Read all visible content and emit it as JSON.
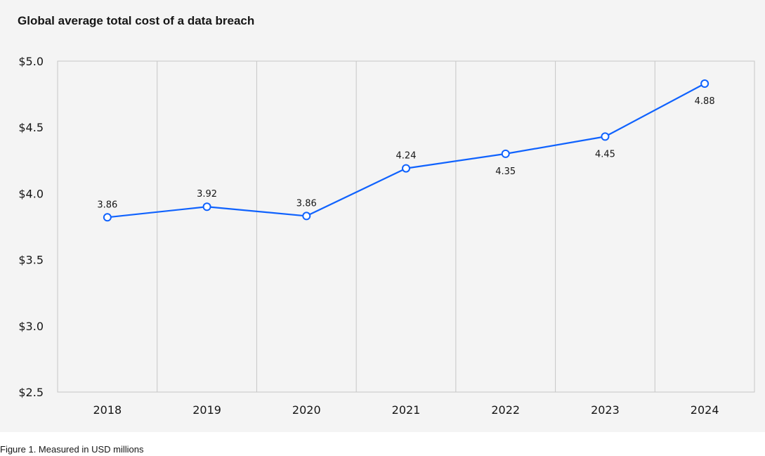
{
  "caption": "Figure 1. Measured in USD millions",
  "colors": {
    "panel_background": "#f4f4f4",
    "plot_background": "#f4f4f4",
    "grid": "#c6c6c6",
    "series": "#0f62fe"
  },
  "chart_data": {
    "type": "line",
    "title": "Global average total cost of a data breach",
    "xlabel": "",
    "ylabel": "",
    "categories": [
      "2018",
      "2019",
      "2020",
      "2021",
      "2022",
      "2023",
      "2024"
    ],
    "ylim": [
      2.5,
      5.0
    ],
    "yticks": [
      2.5,
      3.0,
      3.5,
      4.0,
      4.5,
      5.0
    ],
    "ytick_labels": [
      "$2.5",
      "$3.0",
      "$3.5",
      "$4.0",
      "$4.5",
      "$5.0"
    ],
    "grid": "vertical",
    "legend": "none",
    "series": [
      {
        "values": [
          3.86,
          3.92,
          3.86,
          4.24,
          4.35,
          4.45,
          4.88
        ],
        "plotted": [
          3.82,
          3.9,
          3.83,
          4.19,
          4.3,
          4.43,
          4.83
        ],
        "data_labels": [
          "3.86",
          "3.92",
          "3.86",
          "4.24",
          "4.35",
          "4.45",
          "4.88"
        ],
        "label_side": [
          "above",
          "above",
          "above",
          "above",
          "below",
          "below",
          "below"
        ]
      }
    ]
  }
}
